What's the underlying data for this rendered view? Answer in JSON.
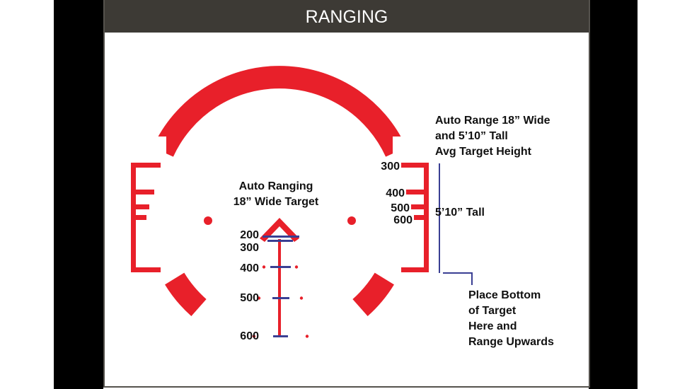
{
  "header": {
    "title": "RANGING"
  },
  "colors": {
    "reticle": "#e8202a",
    "marker": "#3a3f93",
    "header_bg": "#3d3a35"
  },
  "center_reticle": {
    "title_line1": "Auto Ranging",
    "title_line2": "18” Wide Target",
    "ranges": [
      "200",
      "300",
      "400",
      "500",
      "600"
    ]
  },
  "right_bracket": {
    "note_line1": "Auto Range 18” Wide",
    "note_line2": "and 5’10” Tall",
    "note_line3": "Avg Target Height",
    "ranges": [
      "300",
      "400",
      "500",
      "600"
    ],
    "height_label": "5’10” Tall",
    "bottom_note_line1": "Place Bottom",
    "bottom_note_line2": "of Target",
    "bottom_note_line3": "Here and",
    "bottom_note_line4": "Range Upwards"
  }
}
